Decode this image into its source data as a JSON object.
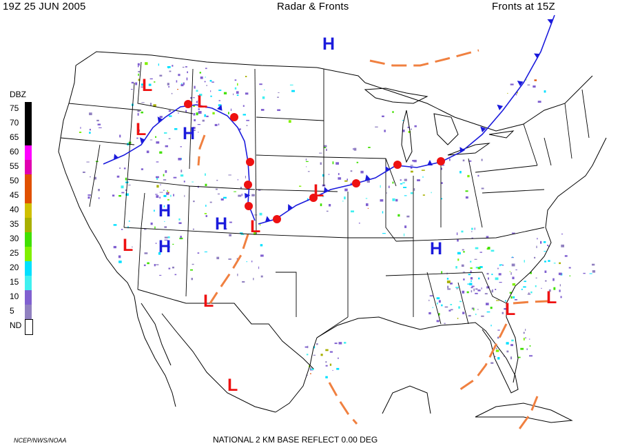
{
  "header": {
    "left": "19Z  25 JUN  2005",
    "center": "Radar & Fronts",
    "right": "Fronts at 15Z"
  },
  "footer": {
    "left": "NCEP/NWS/NOAA",
    "center": "NATIONAL 2 KM BASE REFLECT 0.00 DEG"
  },
  "legend": {
    "title": "DBZ",
    "levels": [
      {
        "label": "75",
        "color": "#000000"
      },
      {
        "label": "70",
        "color": "#000000"
      },
      {
        "label": "65",
        "color": "#000000"
      },
      {
        "label": "60",
        "color": "#ff00ff"
      },
      {
        "label": "55",
        "color": "#e000b0"
      },
      {
        "label": "50",
        "color": "#e05000"
      },
      {
        "label": "45",
        "color": "#e05000"
      },
      {
        "label": "40",
        "color": "#d0c000"
      },
      {
        "label": "35",
        "color": "#a8b000"
      },
      {
        "label": "30",
        "color": "#40e000"
      },
      {
        "label": "25",
        "color": "#80f000"
      },
      {
        "label": "20",
        "color": "#00e0ff"
      },
      {
        "label": "15",
        "color": "#40f0f0"
      },
      {
        "label": "10",
        "color": "#8060d0"
      },
      {
        "label": "5",
        "color": "#9080c0"
      },
      {
        "label": "ND",
        "color": "#ffffff"
      }
    ]
  },
  "systems": [
    {
      "type": "H"
    },
    {
      "type": "L"
    },
    {
      "type": "L"
    },
    {
      "type": "L"
    },
    {
      "type": "H"
    },
    {
      "type": "H"
    },
    {
      "type": "H"
    },
    {
      "type": "L"
    },
    {
      "type": "L"
    },
    {
      "type": "H"
    },
    {
      "type": "L"
    },
    {
      "type": "L"
    },
    {
      "type": "H"
    },
    {
      "type": "L"
    },
    {
      "type": "L"
    },
    {
      "type": "L"
    }
  ],
  "colors": {
    "high": "#1a1adc",
    "low": "#ee1111",
    "cold_front": "#1a1adc",
    "warm_front": "#ee1111",
    "trough": "#f08040",
    "borders": "#000000"
  }
}
